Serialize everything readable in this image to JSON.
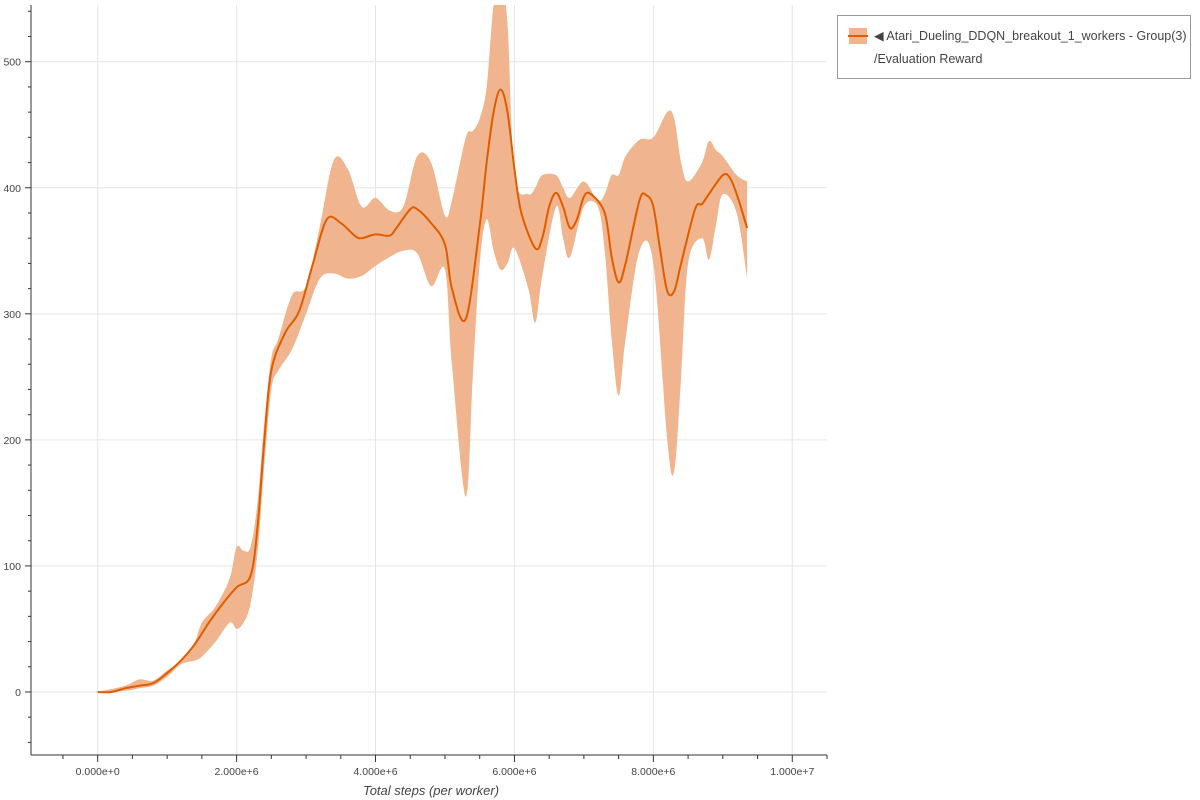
{
  "chart_data": {
    "type": "line",
    "title": "",
    "xlabel": "Total steps (per worker)",
    "ylabel": "",
    "xlim": [
      -960000,
      10500000
    ],
    "ylim": [
      -50,
      545
    ],
    "grid": true,
    "legend_placement": "outside-top-right",
    "x_ticks": [
      0,
      2000000,
      4000000,
      6000000,
      8000000,
      10000000
    ],
    "x_tick_labels": [
      "0.000e+0",
      "2.000e+6",
      "4.000e+6",
      "6.000e+6",
      "8.000e+6",
      "1.000e+7"
    ],
    "y_ticks": [
      0,
      100,
      200,
      300,
      400,
      500
    ],
    "y_tick_labels": [
      "0",
      "100",
      "200",
      "300",
      "400",
      "500"
    ],
    "series": [
      {
        "name": "◀ Atari_Dueling_DDQN_breakout_1_workers - Group(3) /Evaluation Reward",
        "legend_line1": "◀ Atari_Dueling_DDQN_breakout_1_workers - Group(3)",
        "legend_line2": "/Evaluation Reward",
        "color": "#e05c00",
        "band_color": "#f0b58e",
        "mean": [
          [
            0,
            0
          ],
          [
            200000,
            0
          ],
          [
            400000,
            3
          ],
          [
            600000,
            5
          ],
          [
            800000,
            7
          ],
          [
            1000000,
            15
          ],
          [
            1200000,
            25
          ],
          [
            1400000,
            38
          ],
          [
            1600000,
            55
          ],
          [
            1800000,
            70
          ],
          [
            2000000,
            83
          ],
          [
            2200000,
            92
          ],
          [
            2300000,
            130
          ],
          [
            2400000,
            200
          ],
          [
            2500000,
            255
          ],
          [
            2700000,
            285
          ],
          [
            2900000,
            302
          ],
          [
            3100000,
            340
          ],
          [
            3300000,
            375
          ],
          [
            3500000,
            372
          ],
          [
            3700000,
            362
          ],
          [
            3800000,
            360
          ],
          [
            4000000,
            363
          ],
          [
            4200000,
            362
          ],
          [
            4300000,
            368
          ],
          [
            4500000,
            383
          ],
          [
            4600000,
            383
          ],
          [
            4800000,
            372
          ],
          [
            5000000,
            355
          ],
          [
            5100000,
            320
          ],
          [
            5300000,
            296
          ],
          [
            5500000,
            370
          ],
          [
            5600000,
            420
          ],
          [
            5700000,
            460
          ],
          [
            5800000,
            478
          ],
          [
            5900000,
            460
          ],
          [
            6000000,
            415
          ],
          [
            6100000,
            380
          ],
          [
            6300000,
            352
          ],
          [
            6400000,
            360
          ],
          [
            6500000,
            385
          ],
          [
            6600000,
            396
          ],
          [
            6700000,
            385
          ],
          [
            6800000,
            368
          ],
          [
            6900000,
            375
          ],
          [
            7000000,
            393
          ],
          [
            7100000,
            395
          ],
          [
            7300000,
            380
          ],
          [
            7400000,
            345
          ],
          [
            7500000,
            325
          ],
          [
            7600000,
            340
          ],
          [
            7800000,
            390
          ],
          [
            7900000,
            394
          ],
          [
            8000000,
            385
          ],
          [
            8100000,
            350
          ],
          [
            8200000,
            318
          ],
          [
            8300000,
            318
          ],
          [
            8400000,
            340
          ],
          [
            8600000,
            383
          ],
          [
            8700000,
            387
          ],
          [
            8800000,
            395
          ],
          [
            9000000,
            410
          ],
          [
            9100000,
            408
          ],
          [
            9200000,
            395
          ],
          [
            9350000,
            368
          ]
        ],
        "band": [
          [
            0,
            0,
            0
          ],
          [
            400000,
            5,
            1
          ],
          [
            600000,
            10,
            3
          ],
          [
            800000,
            9,
            5
          ],
          [
            1000000,
            17,
            12
          ],
          [
            1200000,
            25,
            22
          ],
          [
            1400000,
            40,
            25
          ],
          [
            1500000,
            55,
            28
          ],
          [
            1700000,
            68,
            40
          ],
          [
            1900000,
            90,
            55
          ],
          [
            2000000,
            115,
            50
          ],
          [
            2100000,
            112,
            55
          ],
          [
            2200000,
            115,
            70
          ],
          [
            2300000,
            150,
            110
          ],
          [
            2400000,
            215,
            180
          ],
          [
            2500000,
            265,
            240
          ],
          [
            2600000,
            280,
            255
          ],
          [
            2800000,
            315,
            272
          ],
          [
            3000000,
            322,
            300
          ],
          [
            3200000,
            370,
            328
          ],
          [
            3400000,
            422,
            332
          ],
          [
            3600000,
            415,
            328
          ],
          [
            3800000,
            385,
            330
          ],
          [
            4000000,
            392,
            338
          ],
          [
            4200000,
            382,
            345
          ],
          [
            4400000,
            385,
            350
          ],
          [
            4600000,
            425,
            348
          ],
          [
            4800000,
            420,
            322
          ],
          [
            5000000,
            378,
            335
          ],
          [
            5100000,
            390,
            260
          ],
          [
            5300000,
            440,
            155
          ],
          [
            5400000,
            445,
            250
          ],
          [
            5500000,
            455,
            340
          ],
          [
            5600000,
            480,
            375
          ],
          [
            5700000,
            545,
            350
          ],
          [
            5800000,
            560,
            335
          ],
          [
            5900000,
            530,
            340
          ],
          [
            6000000,
            410,
            352
          ],
          [
            6200000,
            395,
            320
          ],
          [
            6300000,
            400,
            293
          ],
          [
            6400000,
            410,
            330
          ],
          [
            6600000,
            410,
            385
          ],
          [
            6700000,
            400,
            360
          ],
          [
            6800000,
            392,
            345
          ],
          [
            7000000,
            405,
            385
          ],
          [
            7200000,
            390,
            385
          ],
          [
            7300000,
            395,
            350
          ],
          [
            7400000,
            410,
            280
          ],
          [
            7500000,
            410,
            235
          ],
          [
            7600000,
            425,
            280
          ],
          [
            7800000,
            438,
            350
          ],
          [
            8000000,
            440,
            340
          ],
          [
            8200000,
            460,
            200
          ],
          [
            8300000,
            455,
            175
          ],
          [
            8400000,
            420,
            250
          ],
          [
            8500000,
            405,
            340
          ],
          [
            8700000,
            420,
            360
          ],
          [
            8800000,
            437,
            343
          ],
          [
            8900000,
            430,
            370
          ],
          [
            9000000,
            425,
            395
          ],
          [
            9200000,
            410,
            380
          ],
          [
            9350000,
            405,
            328
          ]
        ]
      }
    ]
  }
}
